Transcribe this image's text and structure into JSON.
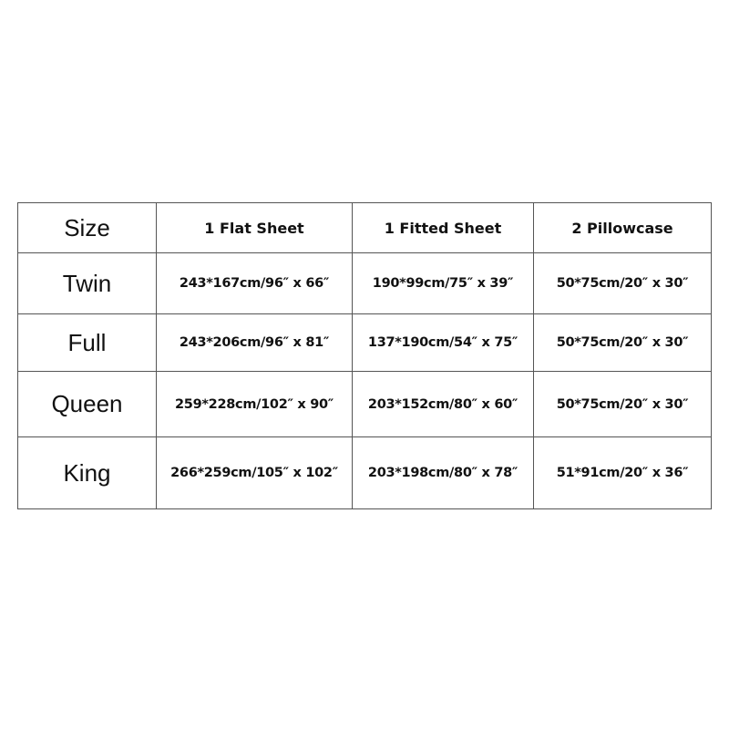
{
  "table": {
    "headers": [
      "Size",
      "1 Flat Sheet",
      "1 Fitted Sheet",
      "2 Pillowcase"
    ],
    "rows": [
      {
        "size": "Twin",
        "flat": "243*167cm/96″  x 66″",
        "fitted": "190*99cm/75″  x 39″",
        "pillow": "50*75cm/20″  x 30″"
      },
      {
        "size": "Full",
        "flat": "243*206cm/96″  x 81″",
        "fitted": "137*190cm/54″  x 75″",
        "pillow": "50*75cm/20″  x 30″"
      },
      {
        "size": "Queen",
        "flat": "259*228cm/102″  x 90″",
        "fitted": "203*152cm/80″  x 60″",
        "pillow": "50*75cm/20″  x 30″"
      },
      {
        "size": "King",
        "flat": "266*259cm/105″  x 102″",
        "fitted": "203*198cm/80″  x 78″",
        "pillow": "51*91cm/20″  x 36″"
      }
    ]
  }
}
